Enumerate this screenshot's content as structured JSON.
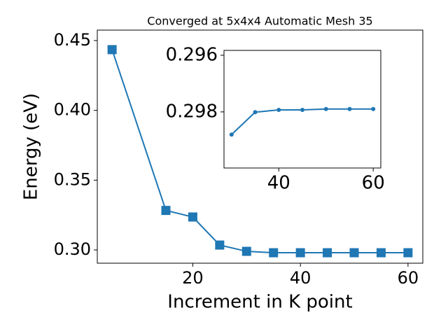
{
  "chart_data": [
    {
      "type": "line",
      "title": "Converged at 5x4x4 Automatic Mesh 35",
      "xlabel": "Increment in K point",
      "ylabel": "Energy (eV)",
      "x": [
        5,
        15,
        20,
        25,
        30,
        35,
        40,
        45,
        50,
        55,
        60
      ],
      "series": [
        {
          "color": "#1f77b4",
          "marker": "square",
          "values": [
            0.4435,
            0.3283,
            0.3236,
            0.3035,
            0.299,
            0.298,
            0.298,
            0.298,
            0.298,
            0.298,
            0.298
          ]
        }
      ],
      "xlim": [
        2.25,
        62.75
      ],
      "ylim": [
        0.2905,
        0.4575
      ],
      "xticks": [
        20,
        40,
        60
      ],
      "yticks": [
        {
          "value": 0.3,
          "label": "0.30"
        },
        0.35,
        {
          "value": 0.4,
          "label": "0.40"
        },
        0.45
      ]
    },
    {
      "type": "line",
      "x": [
        30,
        35,
        40,
        45,
        50,
        55,
        60
      ],
      "series": [
        {
          "color": "#1f77b4",
          "marker": "circle",
          "values": [
            0.2988,
            0.29801,
            0.29793,
            0.29793,
            0.2979,
            0.2979,
            0.2979
          ]
        }
      ],
      "xlim": [
        28.4,
        61.6
      ],
      "ylim": [
        0.29998,
        0.29583
      ],
      "xticks": [
        40,
        60
      ],
      "yticks": [
        0.296,
        0.298
      ]
    }
  ]
}
